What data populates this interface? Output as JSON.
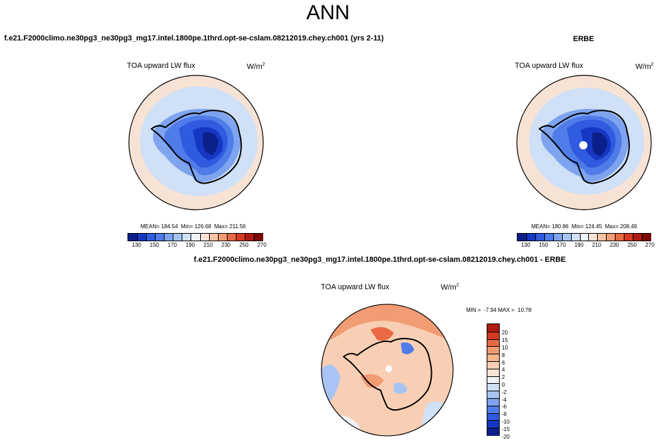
{
  "main_title": "ANN",
  "panels": {
    "case_title": "f.e21.F2000climo.ne30pg3_ne30pg3_mg17.intel.1800pe.1thrd.opt-se-cslam.08212019.chey.ch001 (yrs 2-11)",
    "obs_title": "ERBE",
    "diff_title": "f.e21.F2000climo.ne30pg3_ne30pg3_mg17.intel.1800pe.1thrd.opt-se-cslam.08212019.chey.ch001 - ERBE",
    "variable": "TOA upward LW flux",
    "units_base": "W/m",
    "units_exp": "2"
  },
  "stats": {
    "model": "MEAN= 184.54  Min= 126.68  Max= 211.56",
    "obs": "MEAN= 180.86  Min= 124.45  Max= 208.49",
    "diff": "MIN =  -7.94 MAX =  10.78"
  },
  "colorbar_abs": {
    "colors": [
      "#0b1f8a",
      "#1637c4",
      "#2f5be0",
      "#4f7ce8",
      "#7ea4ef",
      "#a8c4f4",
      "#cfe0f7",
      "#eef2f6",
      "#f7e3d6",
      "#f6c4a5",
      "#f29c74",
      "#e96a45",
      "#d43a22",
      "#b01a12",
      "#7a0a08"
    ],
    "labels": [
      "130",
      "150",
      "170",
      "190",
      "210",
      "230",
      "250",
      "270"
    ]
  },
  "colorbar_diff": {
    "colors": [
      "#b01a12",
      "#d43a22",
      "#e96a45",
      "#f29c74",
      "#f6b48d",
      "#f8cfb4",
      "#fae4d6",
      "#eef2f6",
      "#cfe0f7",
      "#a8c4f4",
      "#7ea4ef",
      "#4f7ce8",
      "#2f5be0",
      "#1637c4",
      "#0b1f8a"
    ],
    "labels": [
      "20",
      "15",
      "10",
      "8",
      "6",
      "4",
      "2",
      "0",
      "-2",
      "-4",
      "-6",
      "-8",
      "-10",
      "-15",
      "-20"
    ]
  },
  "legend_colors": {
    "ocean_light": "#cfe0f7",
    "ocean_warm": "#f7e3d6",
    "ice_mid": "#4f7ce8",
    "ice_deep": "#0b1f8a"
  }
}
